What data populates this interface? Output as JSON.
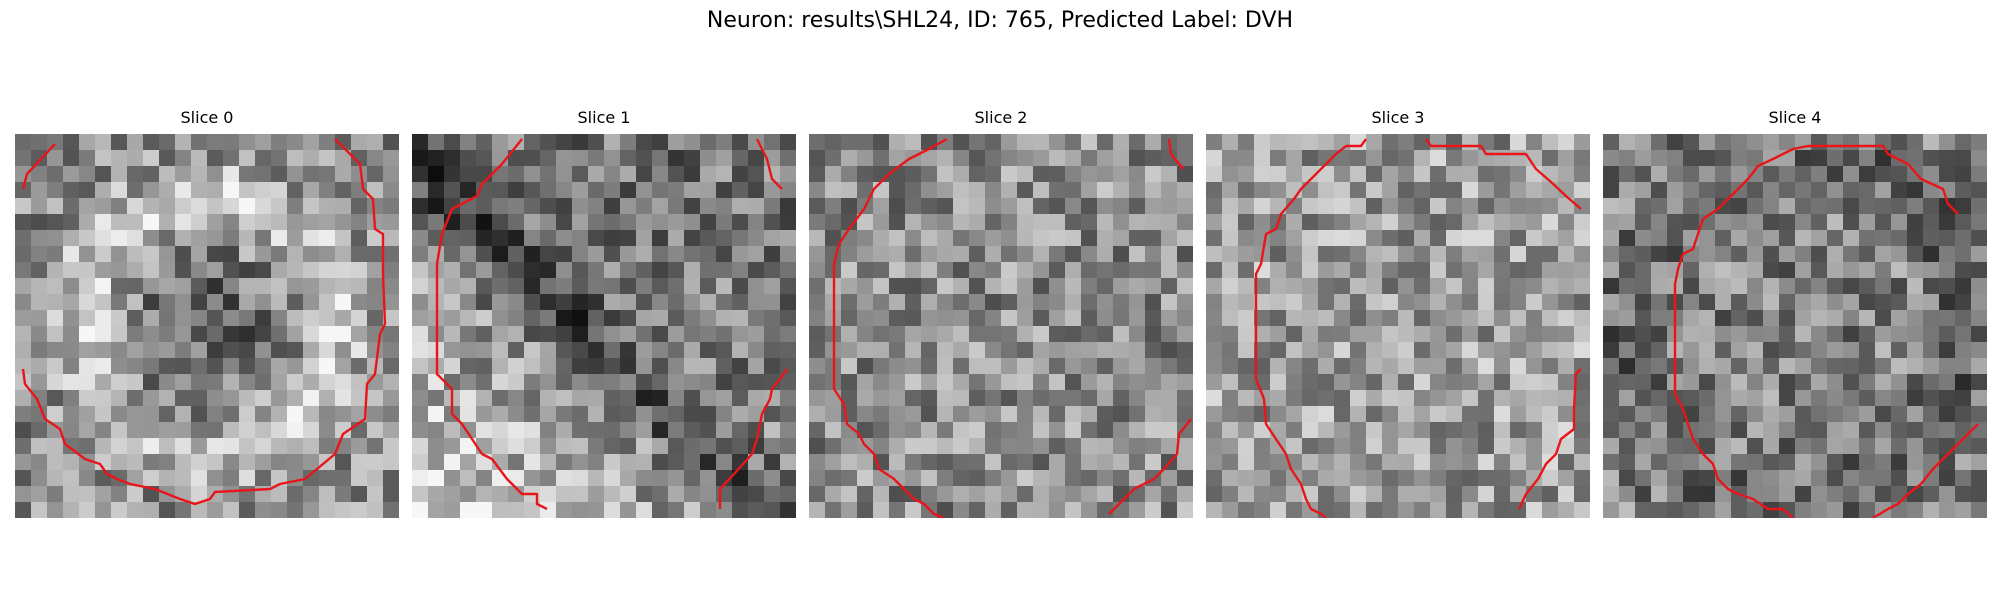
{
  "figure": {
    "title": "Neuron: results\\SHL24, ID: 765, Predicted Label: DVH"
  },
  "slices": [
    {
      "label": "Slice 0",
      "seed": 11,
      "pattern": "ring"
    },
    {
      "label": "Slice 1",
      "seed": 27,
      "pattern": "diagonal"
    },
    {
      "label": "Slice 2",
      "seed": 43,
      "pattern": "noise"
    },
    {
      "label": "Slice 3",
      "seed": 59,
      "pattern": "noise-light"
    },
    {
      "label": "Slice 4",
      "seed": 73,
      "pattern": "noise-dark"
    }
  ],
  "colors": {
    "contour": "#e8161b",
    "background": "#ffffff"
  }
}
